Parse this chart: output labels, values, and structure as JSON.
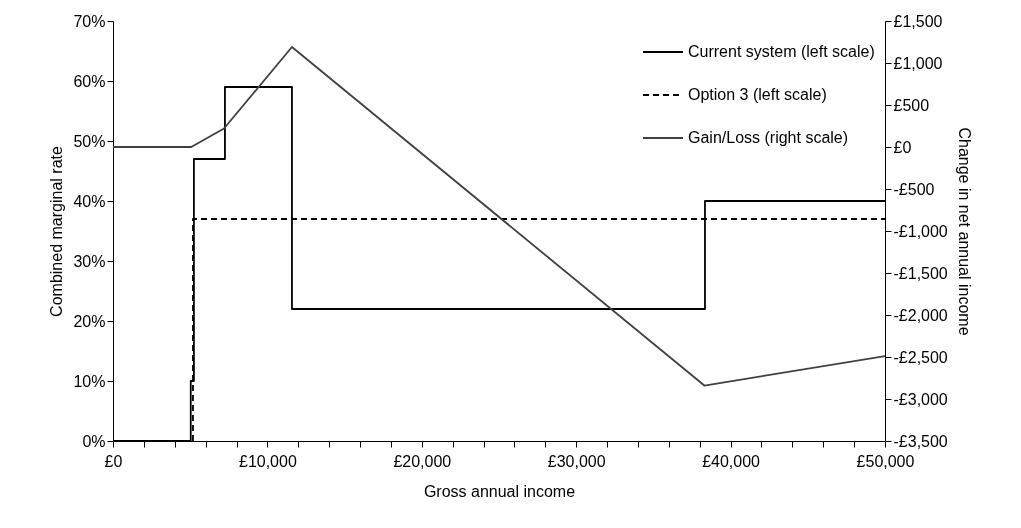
{
  "chart_data": {
    "type": "line",
    "xlabel": "Gross annual income",
    "ylabel": "Combined marginal rate",
    "y2label": "Change in net annual income",
    "xlim": [
      0,
      50000
    ],
    "xticks": [
      {
        "value": 0,
        "label": "£0"
      },
      {
        "value": 2000,
        "label": null
      },
      {
        "value": 4000,
        "label": null
      },
      {
        "value": 6000,
        "label": null
      },
      {
        "value": 8000,
        "label": null
      },
      {
        "value": 10000,
        "label": "£10,000"
      },
      {
        "value": 12000,
        "label": null
      },
      {
        "value": 14000,
        "label": null
      },
      {
        "value": 16000,
        "label": null
      },
      {
        "value": 18000,
        "label": null
      },
      {
        "value": 20000,
        "label": "£20,000"
      },
      {
        "value": 22000,
        "label": null
      },
      {
        "value": 24000,
        "label": null
      },
      {
        "value": 26000,
        "label": null
      },
      {
        "value": 28000,
        "label": null
      },
      {
        "value": 30000,
        "label": "£30,000"
      },
      {
        "value": 32000,
        "label": null
      },
      {
        "value": 34000,
        "label": null
      },
      {
        "value": 36000,
        "label": null
      },
      {
        "value": 38000,
        "label": null
      },
      {
        "value": 40000,
        "label": "£40,000"
      },
      {
        "value": 42000,
        "label": null
      },
      {
        "value": 44000,
        "label": null
      },
      {
        "value": 46000,
        "label": null
      },
      {
        "value": 48000,
        "label": null
      },
      {
        "value": 50000,
        "label": "£50,000"
      }
    ],
    "ylim": [
      0,
      70
    ],
    "yticks": [
      {
        "value": 0,
        "label": "0%"
      },
      {
        "value": 10,
        "label": "10%"
      },
      {
        "value": 20,
        "label": "20%"
      },
      {
        "value": 30,
        "label": "30%"
      },
      {
        "value": 40,
        "label": "40%"
      },
      {
        "value": 50,
        "label": "50%"
      },
      {
        "value": 60,
        "label": "60%"
      },
      {
        "value": 70,
        "label": "70%"
      }
    ],
    "y2lim": [
      -3500,
      1500
    ],
    "y2ticks": [
      {
        "value": -3500,
        "label": "-£3,500"
      },
      {
        "value": -3000,
        "label": "-£3,000"
      },
      {
        "value": -2500,
        "label": "-£2,500"
      },
      {
        "value": -2000,
        "label": "-£2,000"
      },
      {
        "value": -1500,
        "label": "-£1,500"
      },
      {
        "value": -1000,
        "label": "-£1,000"
      },
      {
        "value": -500,
        "label": "-£500"
      },
      {
        "value": 0,
        "label": "£0"
      },
      {
        "value": 500,
        "label": "£500"
      },
      {
        "value": 1000,
        "label": "£1,000"
      },
      {
        "value": 1500,
        "label": "£1,500"
      }
    ],
    "legend": "top right",
    "series": [
      {
        "name": "Current system (left scale)",
        "color": "#000000",
        "line_style": "solid",
        "x": [
          0,
          5035,
          5035,
          5240,
          5240,
          7250,
          7250,
          11590,
          11590,
          38340,
          38340,
          50000
        ],
        "values": [
          0,
          0,
          10,
          10,
          47,
          47,
          59,
          59,
          22,
          22,
          40,
          40
        ]
      },
      {
        "name": "Option 3 (left scale)",
        "color": "#000000",
        "line_style": "dashed",
        "x": [
          0,
          5180,
          5180,
          50000
        ],
        "values": [
          0,
          0,
          37,
          37
        ]
      },
      {
        "name": "Gain/Loss (right scale)",
        "color": "#404040",
        "line_style": "solid",
        "axis": "y2",
        "x": [
          0,
          5070,
          7190,
          11590,
          38300,
          50000
        ],
        "values": [
          0,
          0,
          220,
          1190,
          -2840,
          -2490
        ]
      }
    ]
  }
}
